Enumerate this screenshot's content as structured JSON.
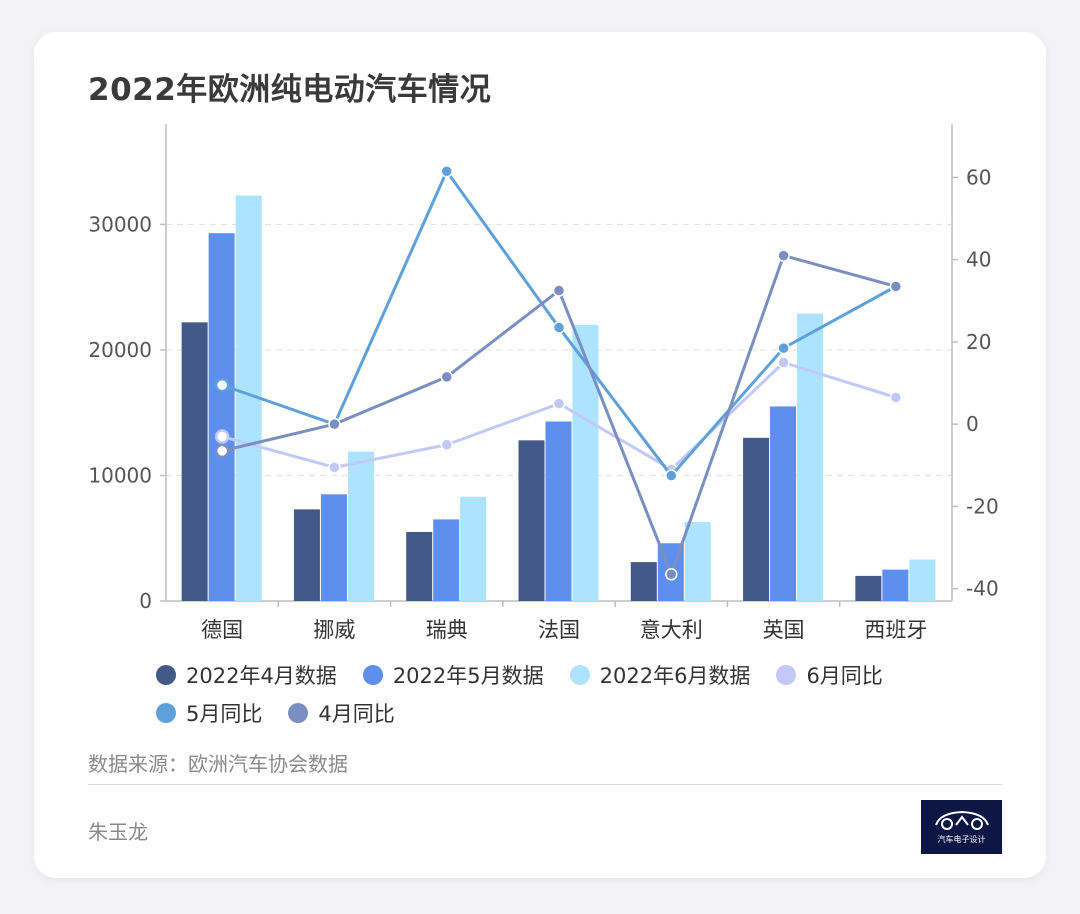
{
  "title": "2022年欧洲纯电动汽车情况",
  "source": "数据来源：欧洲汽车协会数据",
  "author": "朱玉龙",
  "logo_text": "汽车电子设计",
  "chart_data": {
    "type": "bar",
    "title": "2022年欧洲纯电动汽车情况",
    "categories": [
      "德国",
      "挪威",
      "瑞典",
      "法国",
      "意大利",
      "英国",
      "西班牙"
    ],
    "y_left": {
      "range": [
        0,
        38000
      ],
      "ticks": [
        0,
        10000,
        20000,
        30000
      ]
    },
    "y_right": {
      "range": [
        -43,
        73
      ],
      "ticks": [
        -40,
        -20,
        0,
        20,
        40,
        60
      ]
    },
    "grid": "horizontal dashed",
    "legend_position": "bottom",
    "bar_series": [
      {
        "name": "2022年4月数据",
        "color": "#435a88",
        "values": [
          22200,
          7300,
          5500,
          12800,
          3100,
          13000,
          2000
        ]
      },
      {
        "name": "2022年5月数据",
        "color": "#5c8fee",
        "values": [
          29300,
          8500,
          6500,
          14300,
          4600,
          15500,
          2500
        ]
      },
      {
        "name": "2022年6月数据",
        "color": "#ade3fd",
        "values": [
          32300,
          11900,
          8300,
          22000,
          6300,
          22900,
          3300
        ]
      }
    ],
    "line_series": [
      {
        "name": "6月同比",
        "color": "#c2c9f9",
        "values": [
          -3,
          -10.5,
          -5,
          5,
          -11,
          15,
          6.5
        ]
      },
      {
        "name": "5月同比",
        "color": "#5ea0da",
        "values": [
          9.5,
          0,
          61.5,
          23.5,
          -12.5,
          18.5,
          33.5
        ]
      },
      {
        "name": "4月同比",
        "color": "#7a8ec2",
        "values": [
          -6.5,
          0,
          11.5,
          32.5,
          -36.5,
          41,
          33.5
        ]
      }
    ]
  }
}
